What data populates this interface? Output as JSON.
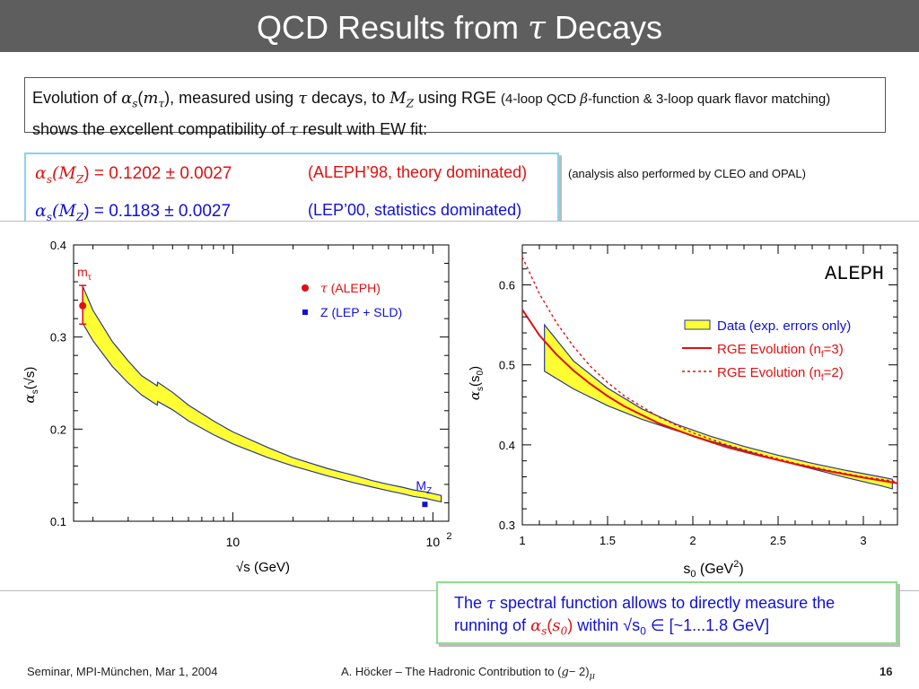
{
  "slide": {
    "title_main": "QCD Results from",
    "title_tau": "τ",
    "title_end": "Decays",
    "intro": {
      "p1": "Evolution of ",
      "alpha": "α",
      "s_sub": "s",
      "paren_open": "(",
      "m": "m",
      "tau_sub": "τ",
      "paren_close": ")",
      "p2": ", measured using ",
      "tau": "τ",
      "p3": " decays, to ",
      "M": "M",
      "Z_sub": "Z",
      "p4": " using RGE ",
      "small1": "(4-loop QCD ",
      "beta": "β",
      "small2": "-function  & 3-loop quark flavor matching)",
      "p5": " shows the excellent compatibility of ",
      "tau2": "τ",
      "p6": " result with EW fit:"
    },
    "results": [
      {
        "alpha": "α",
        "s": "s",
        "M": "(M",
        "Z": "Z",
        "close": ")",
        "value": " = 0.1202 ± 0.0027",
        "note": "(ALEPH’98, theory dominated)"
      },
      {
        "alpha": "α",
        "s": "s",
        "M": "(M",
        "Z": "Z",
        "close": ")",
        "value": " = 0.1183 ± 0.0027",
        "note": "(LEP’00, statistics dominated)"
      }
    ],
    "analysis_note": "(analysis also performed by CLEO and OPAL)",
    "bottom_note": {
      "l1a": "The ",
      "tau": "τ",
      "l1b": " spectral function allows to directly measure the",
      "l2a": "running of ",
      "alpha": "α",
      "s": "s",
      "open": "(",
      "s0": "s",
      "zero": "0",
      "close": ")",
      "l2b": " within √s",
      "sub0": "0",
      "in": " ∈ ",
      "range": "[~1...1.8 GeV]"
    },
    "footer": {
      "left": "Seminar, MPI-München, Mar 1, 2004",
      "center_a": "A. Höcker – The Hadronic Contribution to (",
      "center_g": "g",
      "center_b": "− 2)",
      "center_mu": "μ",
      "page": "16"
    }
  },
  "colors": {
    "band": "#ffff33",
    "band_edge": "#2a3a8a",
    "tau_red": "#e01010",
    "z_blue": "#1010d8",
    "rge": "#e01010"
  },
  "chart_data": [
    {
      "type": "line",
      "xscale": "log",
      "xlim": [
        1.6,
        120
      ],
      "ylim": [
        0.1,
        0.4
      ],
      "yticks": [
        0.1,
        0.2,
        0.3,
        0.4
      ],
      "ytick_labels": [
        "0.1",
        "0.2",
        "0.3",
        "0.4"
      ],
      "xtick_labels": [
        {
          "value": 10,
          "label": "10"
        },
        {
          "value": 100,
          "label": "10",
          "sup": "2"
        }
      ],
      "xlabel": "√s   (GeV)",
      "ylabel_main": "α",
      "ylabel_sub": "s",
      "ylabel_arg": "(√s)",
      "legend": [
        {
          "symbol": "circle",
          "label_sym": "τ",
          "label": " (ALEPH)"
        },
        {
          "symbol": "square",
          "label": "Z (LEP + SLD)"
        }
      ],
      "band": {
        "x": [
          1.777,
          2.0,
          2.5,
          3.0,
          3.5,
          4.19,
          4.21,
          5.0,
          6.0,
          8.0,
          10.0,
          15.0,
          20.0,
          30.0,
          40.0,
          50.0,
          60.0,
          70.0,
          80.0,
          91.19,
          100,
          110
        ],
        "upper": [
          0.355,
          0.329,
          0.295,
          0.274,
          0.258,
          0.247,
          0.251,
          0.24,
          0.226,
          0.209,
          0.197,
          0.18,
          0.169,
          0.157,
          0.15,
          0.144,
          0.14,
          0.137,
          0.134,
          0.132,
          0.13,
          0.128
        ],
        "lower": [
          0.315,
          0.296,
          0.268,
          0.25,
          0.237,
          0.226,
          0.23,
          0.221,
          0.209,
          0.194,
          0.184,
          0.169,
          0.16,
          0.149,
          0.142,
          0.137,
          0.133,
          0.13,
          0.127,
          0.125,
          0.123,
          0.121
        ]
      },
      "points": [
        {
          "label": "m",
          "label_sub": "τ",
          "x": 1.777,
          "y": 0.334,
          "err_low": 0.314,
          "err_high": 0.356,
          "marker": "circle"
        },
        {
          "label": "M",
          "label_sub": "Z",
          "x": 91.19,
          "y": 0.1183,
          "marker": "square"
        }
      ]
    },
    {
      "type": "line",
      "title": "ALEPH",
      "xlim": [
        1,
        3.2
      ],
      "ylim": [
        0.3,
        0.65
      ],
      "xticks": [
        1,
        1.5,
        2,
        2.5,
        3
      ],
      "xtick_labels": [
        "1",
        "1.5",
        "2",
        "2.5",
        "3"
      ],
      "yticks": [
        0.3,
        0.4,
        0.5,
        0.6
      ],
      "ytick_labels": [
        "0.3",
        "0.4",
        "0.5",
        "0.6"
      ],
      "xlabel_main": "s",
      "xlabel_sub": "0",
      "xlabel_unit": "   (GeV",
      "xlabel_sup": "2",
      "xlabel_close": ")",
      "ylabel_main": "α",
      "ylabel_sub": "s",
      "ylabel_arg": "(s",
      "ylabel_arg_sub": "0",
      "ylabel_close": ")",
      "legend": [
        {
          "symbol": "band",
          "label": "Data (exp. errors only)"
        },
        {
          "symbol": "solid",
          "label": "RGE Evolution (n",
          "sub": "f",
          "label_end": "=3)"
        },
        {
          "symbol": "dotted",
          "label": "RGE Evolution (n",
          "sub": "f",
          "label_end": "=2)"
        }
      ],
      "band": {
        "x": [
          1.13,
          1.3,
          1.5,
          1.7,
          1.9,
          2.1,
          2.3,
          2.5,
          2.7,
          2.9,
          3.1,
          3.17
        ],
        "upper": [
          0.55,
          0.505,
          0.471,
          0.445,
          0.426,
          0.411,
          0.398,
          0.387,
          0.377,
          0.368,
          0.36,
          0.357
        ],
        "lower": [
          0.492,
          0.47,
          0.449,
          0.432,
          0.418,
          0.405,
          0.393,
          0.381,
          0.37,
          0.359,
          0.349,
          0.345
        ]
      },
      "series": [
        {
          "name": "RGE Evolution (nf=3)",
          "style": "solid",
          "x": [
            1.0,
            1.1,
            1.2,
            1.3,
            1.4,
            1.5,
            1.6,
            1.8,
            2.0,
            2.2,
            2.4,
            2.6,
            2.8,
            3.0,
            3.2
          ],
          "y": [
            0.569,
            0.537,
            0.513,
            0.493,
            0.476,
            0.461,
            0.448,
            0.427,
            0.411,
            0.397,
            0.386,
            0.376,
            0.367,
            0.359,
            0.352
          ]
        },
        {
          "name": "RGE Evolution (nf=2)",
          "style": "dotted",
          "x": [
            1.0,
            1.1,
            1.2,
            1.3,
            1.4,
            1.5,
            1.6,
            1.8,
            2.0,
            2.2,
            2.4,
            2.6,
            2.8,
            3.0,
            3.2
          ],
          "y": [
            0.635,
            0.589,
            0.553,
            0.523,
            0.498,
            0.478,
            0.461,
            0.435,
            0.415,
            0.4,
            0.388,
            0.377,
            0.368,
            0.36,
            0.354
          ]
        }
      ]
    }
  ]
}
